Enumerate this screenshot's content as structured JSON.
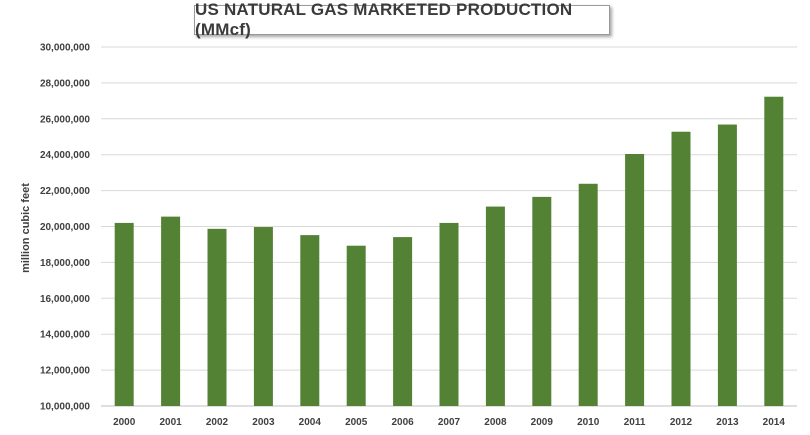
{
  "chart_data": {
    "type": "bar",
    "title": "US NATURAL GAS MARKETED PRODUCTION (MMcf)",
    "xlabel": "",
    "ylabel": "million cubic feet",
    "categories": [
      "2000",
      "2001",
      "2002",
      "2003",
      "2004",
      "2005",
      "2006",
      "2007",
      "2008",
      "2009",
      "2010",
      "2011",
      "2012",
      "2013",
      "2014"
    ],
    "values": [
      20200000,
      20550000,
      19870000,
      19970000,
      19520000,
      18930000,
      19410000,
      20200000,
      21110000,
      21650000,
      22380000,
      24040000,
      25280000,
      25680000,
      27230000
    ],
    "ylim": [
      10000000,
      30000000
    ],
    "yticks": [
      "10,000,000",
      "12,000,000",
      "14,000,000",
      "16,000,000",
      "18,000,000",
      "20,000,000",
      "22,000,000",
      "24,000,000",
      "26,000,000",
      "28,000,000",
      "30,000,000"
    ],
    "ytick_values": [
      10000000,
      12000000,
      14000000,
      16000000,
      18000000,
      20000000,
      22000000,
      24000000,
      26000000,
      28000000,
      30000000
    ],
    "grid": true,
    "legend": "none",
    "bar_color": "#548235",
    "grid_color": "#d9d9d9"
  }
}
